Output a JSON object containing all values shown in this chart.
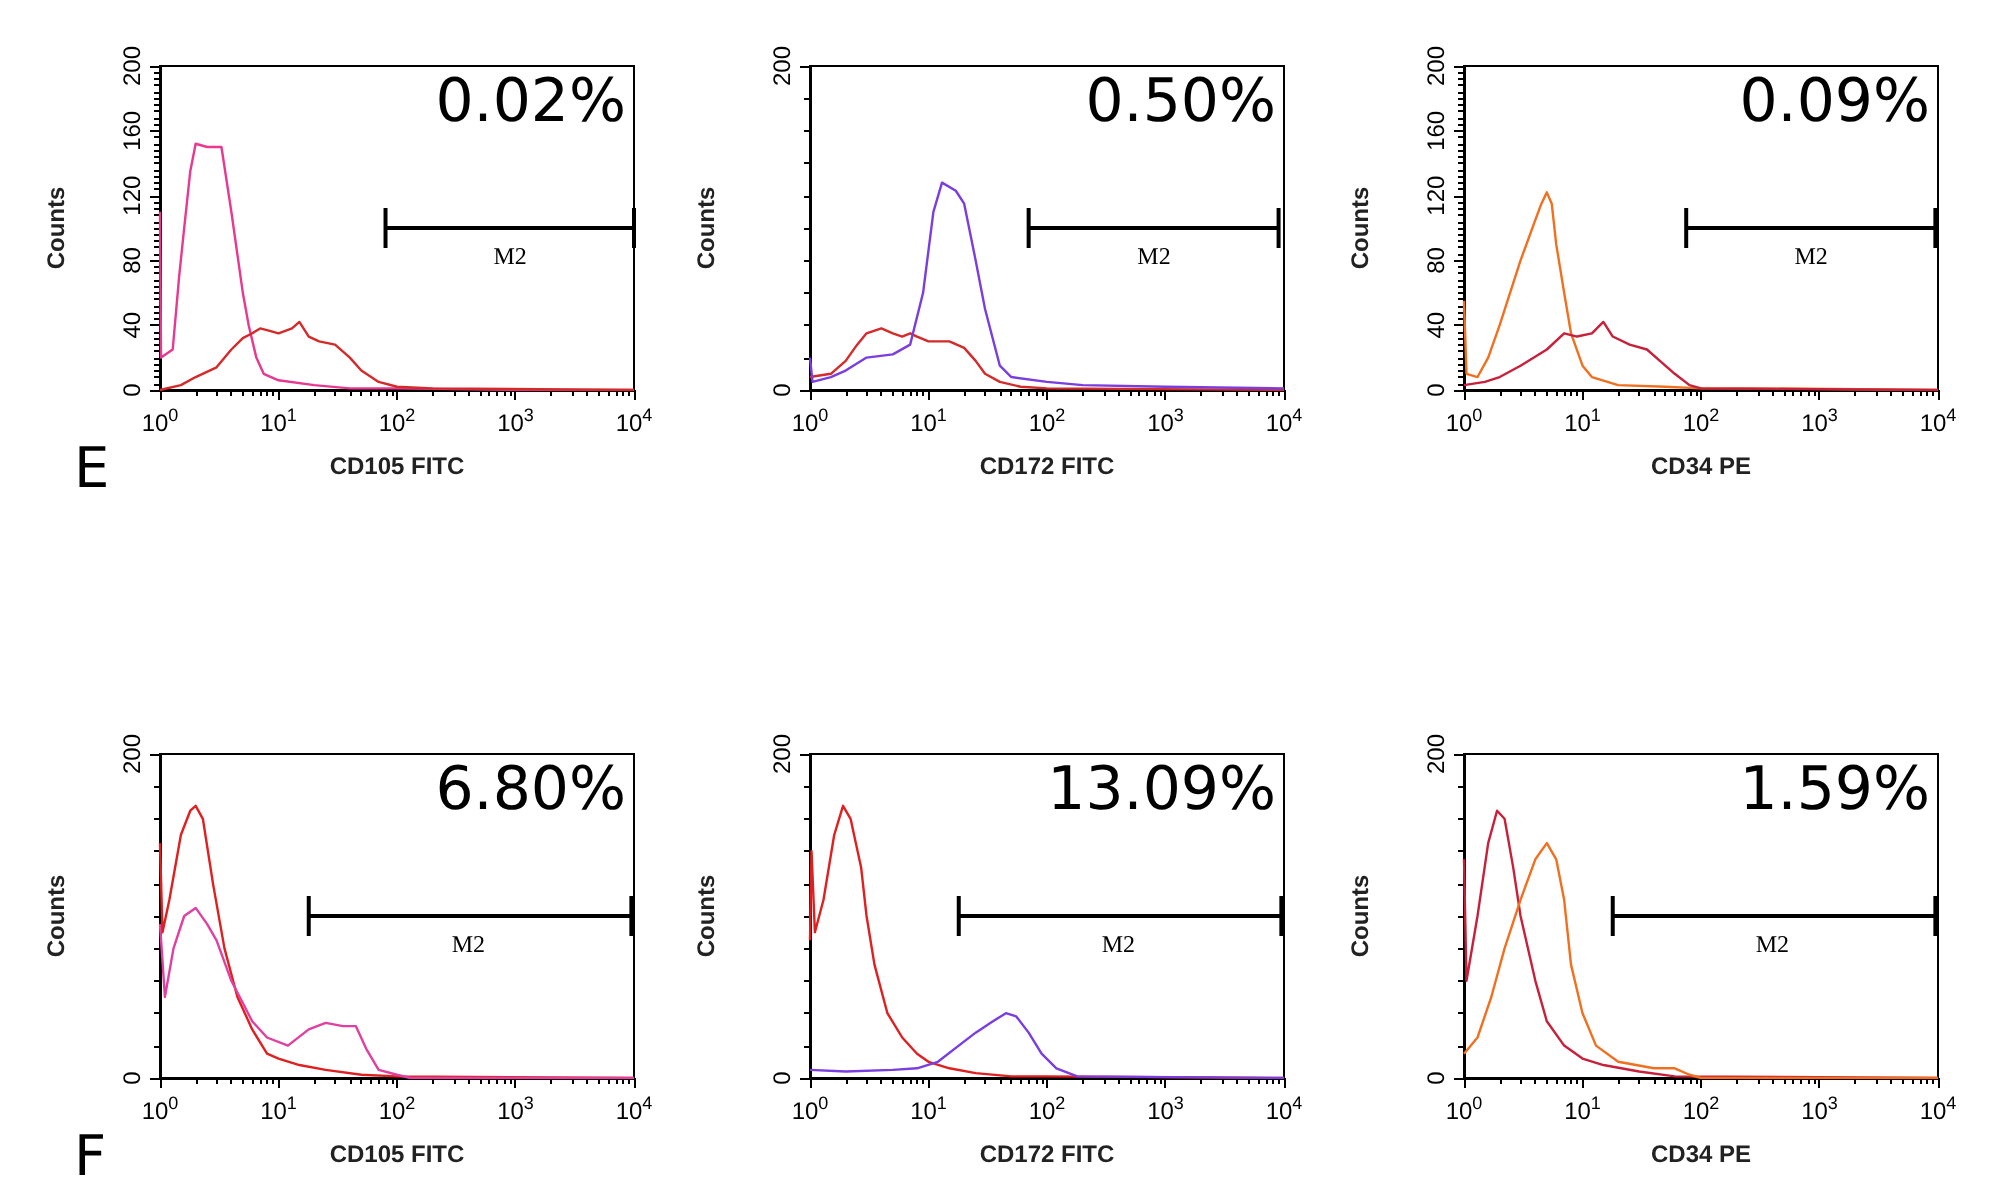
{
  "chart_data": [
    {
      "type": "line",
      "title": "E",
      "xlabel": "CD105 FITC",
      "ylabel": "Counts",
      "log": "x",
      "marker": "none",
      "annotations": [
        "0.02%",
        {
          "text": "M2",
          "x": 900,
          "y": 100
        }
      ],
      "xlim": [
        1,
        10000
      ],
      "xticks": [
        {
          "value": 1,
          "label": "10$^{0}$"
        },
        {
          "value": 10,
          "label": "10$^{1}$"
        },
        {
          "value": 100,
          "label": "10$^{2}$"
        },
        {
          "value": 1000,
          "label": "10$^{3}$"
        },
        {
          "value": 10000,
          "label": "10$^{4}$"
        }
      ],
      "ylim": [
        0,
        200
      ],
      "yticks": [
        0,
        40,
        80,
        120,
        160,
        200
      ],
      "series": [
        {
          "color": "#e8388f",
          "x": [
            1,
            1.02,
            1.28,
            1.45,
            1.6,
            1.8,
            2,
            2.5,
            3.3,
            4,
            5,
            5.6,
            6.5,
            7.5,
            10,
            20,
            40,
            100,
            1000,
            10000
          ],
          "values": [
            110,
            20,
            25,
            70,
            100,
            135,
            152,
            150,
            150,
            110,
            60,
            40,
            20,
            10,
            6,
            3,
            1,
            1,
            0,
            0
          ]
        },
        {
          "color": "#d42a2a",
          "x": [
            1,
            1.5,
            2,
            3,
            4,
            5,
            6,
            7,
            8,
            10,
            13,
            15,
            18,
            22,
            30,
            40,
            50,
            70,
            100,
            200,
            10000
          ],
          "values": [
            0,
            3,
            8,
            14,
            25,
            32,
            35,
            38,
            37,
            35,
            38,
            42,
            33,
            30,
            28,
            20,
            12,
            5,
            2,
            1,
            0
          ]
        },
        {
          "color": "#000000",
          "x": [
            80,
            10000
          ],
          "values": [
            100,
            100
          ]
        }
      ]
    },
    {
      "type": "line",
      "xlabel": "CD172 FITC",
      "ylabel": "Counts",
      "log": "x",
      "marker": "none",
      "annotations": [
        "0.50%",
        {
          "text": "M2",
          "x": 800,
          "y": 100
        }
      ],
      "xlim": [
        1,
        10000
      ],
      "xticks": [
        {
          "value": 1,
          "label": "10$^{0}$"
        },
        {
          "value": 10,
          "label": "10$^{1}$"
        },
        {
          "value": 100,
          "label": "10$^{2}$"
        },
        {
          "value": 1000,
          "label": "10$^{3}$"
        },
        {
          "value": 10000,
          "label": "10$^{4}$"
        }
      ],
      "ylim": [
        0,
        200
      ],
      "yticks": [
        0,
        200
      ],
      "series": [
        {
          "color": "#d42a2a",
          "x": [
            1,
            1.5,
            2,
            2.5,
            3,
            4,
            5,
            6,
            7,
            8,
            10,
            15,
            20,
            25,
            30,
            40,
            60,
            100,
            10000
          ],
          "values": [
            8,
            10,
            18,
            28,
            35,
            38,
            35,
            33,
            35,
            33,
            30,
            30,
            26,
            18,
            10,
            5,
            2,
            1,
            0
          ]
        },
        {
          "color": "#7a3ee0",
          "x": [
            1,
            1.05,
            1.5,
            2,
            3,
            5,
            7,
            9,
            11,
            13,
            17,
            20,
            25,
            30,
            40,
            50,
            100,
            200,
            1000,
            10000
          ],
          "values": [
            20,
            5,
            8,
            12,
            20,
            22,
            28,
            60,
            110,
            128,
            123,
            115,
            80,
            50,
            15,
            8,
            5,
            3,
            2,
            1
          ]
        },
        {
          "color": "#000000",
          "x": [
            70,
            9000
          ],
          "values": [
            100,
            100
          ]
        }
      ]
    },
    {
      "type": "line",
      "xlabel": "CD34 PE",
      "ylabel": "Counts",
      "log": "x",
      "marker": "none",
      "annotations": [
        "0.09%",
        {
          "text": "M2",
          "x": 850,
          "y": 100
        }
      ],
      "xlim": [
        1,
        10000
      ],
      "xticks": [
        {
          "value": 1,
          "label": "10$^{0}$"
        },
        {
          "value": 10,
          "label": "10$^{1}$"
        },
        {
          "value": 100,
          "label": "10$^{2}$"
        },
        {
          "value": 1000,
          "label": "10$^{3}$"
        },
        {
          "value": 10000,
          "label": "10$^{4}$"
        }
      ],
      "ylim": [
        0,
        200
      ],
      "yticks": [
        0,
        40,
        80,
        120,
        160,
        200
      ],
      "series": [
        {
          "color": "#f07020",
          "x": [
            1,
            1.05,
            1.3,
            1.6,
            2,
            3,
            4,
            4.5,
            5,
            5.5,
            6,
            7,
            8,
            10,
            12,
            20,
            50,
            100,
            300,
            10000
          ],
          "values": [
            55,
            10,
            8,
            20,
            40,
            80,
            105,
            115,
            122,
            115,
            90,
            60,
            35,
            15,
            8,
            3,
            2,
            1,
            1,
            0
          ]
        },
        {
          "color": "#c8203a",
          "x": [
            1,
            1.5,
            2,
            3,
            5,
            7,
            9,
            12,
            15,
            18,
            25,
            35,
            45,
            60,
            80,
            100,
            10000
          ],
          "values": [
            3,
            5,
            8,
            15,
            25,
            35,
            33,
            35,
            42,
            33,
            28,
            25,
            18,
            10,
            3,
            1,
            0
          ]
        },
        {
          "color": "#000000",
          "x": [
            75,
            9500
          ],
          "values": [
            100,
            100
          ]
        }
      ]
    },
    {
      "type": "line",
      "title": "F",
      "xlabel": "CD105 FITC",
      "ylabel": "Counts",
      "log": "x",
      "marker": "none",
      "annotations": [
        "6.80%",
        {
          "text": "M2",
          "x": 400,
          "y": 100
        }
      ],
      "xlim": [
        1,
        10000
      ],
      "xticks": [
        {
          "value": 1,
          "label": "10$^{0}$"
        },
        {
          "value": 10,
          "label": "10$^{1}$"
        },
        {
          "value": 100,
          "label": "10$^{2}$"
        },
        {
          "value": 1000,
          "label": "10$^{3}$"
        },
        {
          "value": 10000,
          "label": "10$^{4}$"
        }
      ],
      "ylim": [
        0,
        200
      ],
      "yticks": [
        0,
        200
      ],
      "series": [
        {
          "color": "#e02020",
          "x": [
            1,
            1.05,
            1.2,
            1.5,
            1.8,
            2,
            2.3,
            2.8,
            3.5,
            4.5,
            6,
            8,
            10,
            15,
            25,
            50,
            100,
            10000
          ],
          "values": [
            145,
            90,
            110,
            150,
            165,
            168,
            160,
            120,
            80,
            50,
            30,
            15,
            12,
            8,
            5,
            2,
            1,
            0
          ]
        },
        {
          "color": "#e040a0",
          "x": [
            1,
            1.1,
            1.3,
            1.6,
            2,
            2.5,
            3,
            4,
            6,
            8,
            12,
            18,
            25,
            35,
            45,
            55,
            70,
            100,
            130,
            10000
          ],
          "values": [
            95,
            50,
            80,
            100,
            105,
            95,
            85,
            60,
            35,
            25,
            20,
            30,
            34,
            32,
            32,
            18,
            5,
            2,
            0,
            0
          ]
        },
        {
          "color": "#000000",
          "x": [
            18,
            9500
          ],
          "values": [
            100,
            100
          ]
        }
      ]
    },
    {
      "type": "line",
      "xlabel": "CD172 FITC",
      "ylabel": "Counts",
      "log": "x",
      "marker": "none",
      "annotations": [
        "13.09%",
        {
          "text": "M2",
          "x": 400,
          "y": 100
        }
      ],
      "xlim": [
        1,
        10000
      ],
      "xticks": [
        {
          "value": 1,
          "label": "10$^{0}$"
        },
        {
          "value": 10,
          "label": "10$^{1}$"
        },
        {
          "value": 100,
          "label": "10$^{2}$"
        },
        {
          "value": 1000,
          "label": "10$^{3}$"
        },
        {
          "value": 10000,
          "label": "10$^{4}$"
        }
      ],
      "ylim": [
        0,
        200
      ],
      "yticks": [
        0,
        200
      ],
      "series": [
        {
          "color": "#e02020",
          "x": [
            1,
            1.03,
            1.1,
            1.3,
            1.6,
            1.9,
            2.2,
            2.7,
            3,
            3.5,
            4.5,
            6,
            8,
            10,
            15,
            25,
            50,
            100,
            10000
          ],
          "values": [
            85,
            140,
            90,
            110,
            150,
            168,
            160,
            130,
            100,
            70,
            40,
            25,
            15,
            10,
            6,
            3,
            1,
            1,
            0
          ]
        },
        {
          "color": "#7a3ee0",
          "x": [
            1,
            2,
            5,
            8,
            12,
            18,
            25,
            35,
            45,
            55,
            70,
            90,
            120,
            180,
            10000
          ],
          "values": [
            5,
            4,
            5,
            6,
            10,
            20,
            28,
            35,
            40,
            38,
            28,
            15,
            6,
            1,
            0
          ]
        },
        {
          "color": "#000000",
          "x": [
            18,
            9500
          ],
          "values": [
            100,
            100
          ]
        }
      ]
    },
    {
      "type": "line",
      "xlabel": "CD34 PE",
      "ylabel": "Counts",
      "log": "x",
      "marker": "none",
      "annotations": [
        "1.59%",
        {
          "text": "M2",
          "x": 400,
          "y": 100
        }
      ],
      "xlim": [
        1,
        10000
      ],
      "xticks": [
        {
          "value": 1,
          "label": "10$^{0}$"
        },
        {
          "value": 10,
          "label": "10$^{1}$"
        },
        {
          "value": 100,
          "label": "10$^{2}$"
        },
        {
          "value": 1000,
          "label": "10$^{3}$"
        },
        {
          "value": 10000,
          "label": "10$^{4}$"
        }
      ],
      "ylim": [
        0,
        200
      ],
      "yticks": [
        0,
        200
      ],
      "series": [
        {
          "color": "#c8203a",
          "x": [
            1,
            1.05,
            1.3,
            1.6,
            1.9,
            2.2,
            2.6,
            3,
            4,
            5,
            7,
            10,
            15,
            30,
            60,
            10000
          ],
          "values": [
            135,
            60,
            100,
            145,
            165,
            160,
            130,
            100,
            60,
            35,
            20,
            12,
            8,
            4,
            1,
            0
          ]
        },
        {
          "color": "#f07020",
          "x": [
            1,
            1.3,
            1.7,
            2.2,
            3,
            4,
            5,
            6,
            7,
            8,
            10,
            13,
            20,
            40,
            60,
            80,
            100,
            10000
          ],
          "values": [
            15,
            25,
            50,
            80,
            110,
            135,
            145,
            135,
            110,
            70,
            40,
            20,
            10,
            6,
            6,
            2,
            0,
            0
          ]
        },
        {
          "color": "#000000",
          "x": [
            18,
            9500
          ],
          "values": [
            100,
            100
          ]
        }
      ]
    }
  ]
}
